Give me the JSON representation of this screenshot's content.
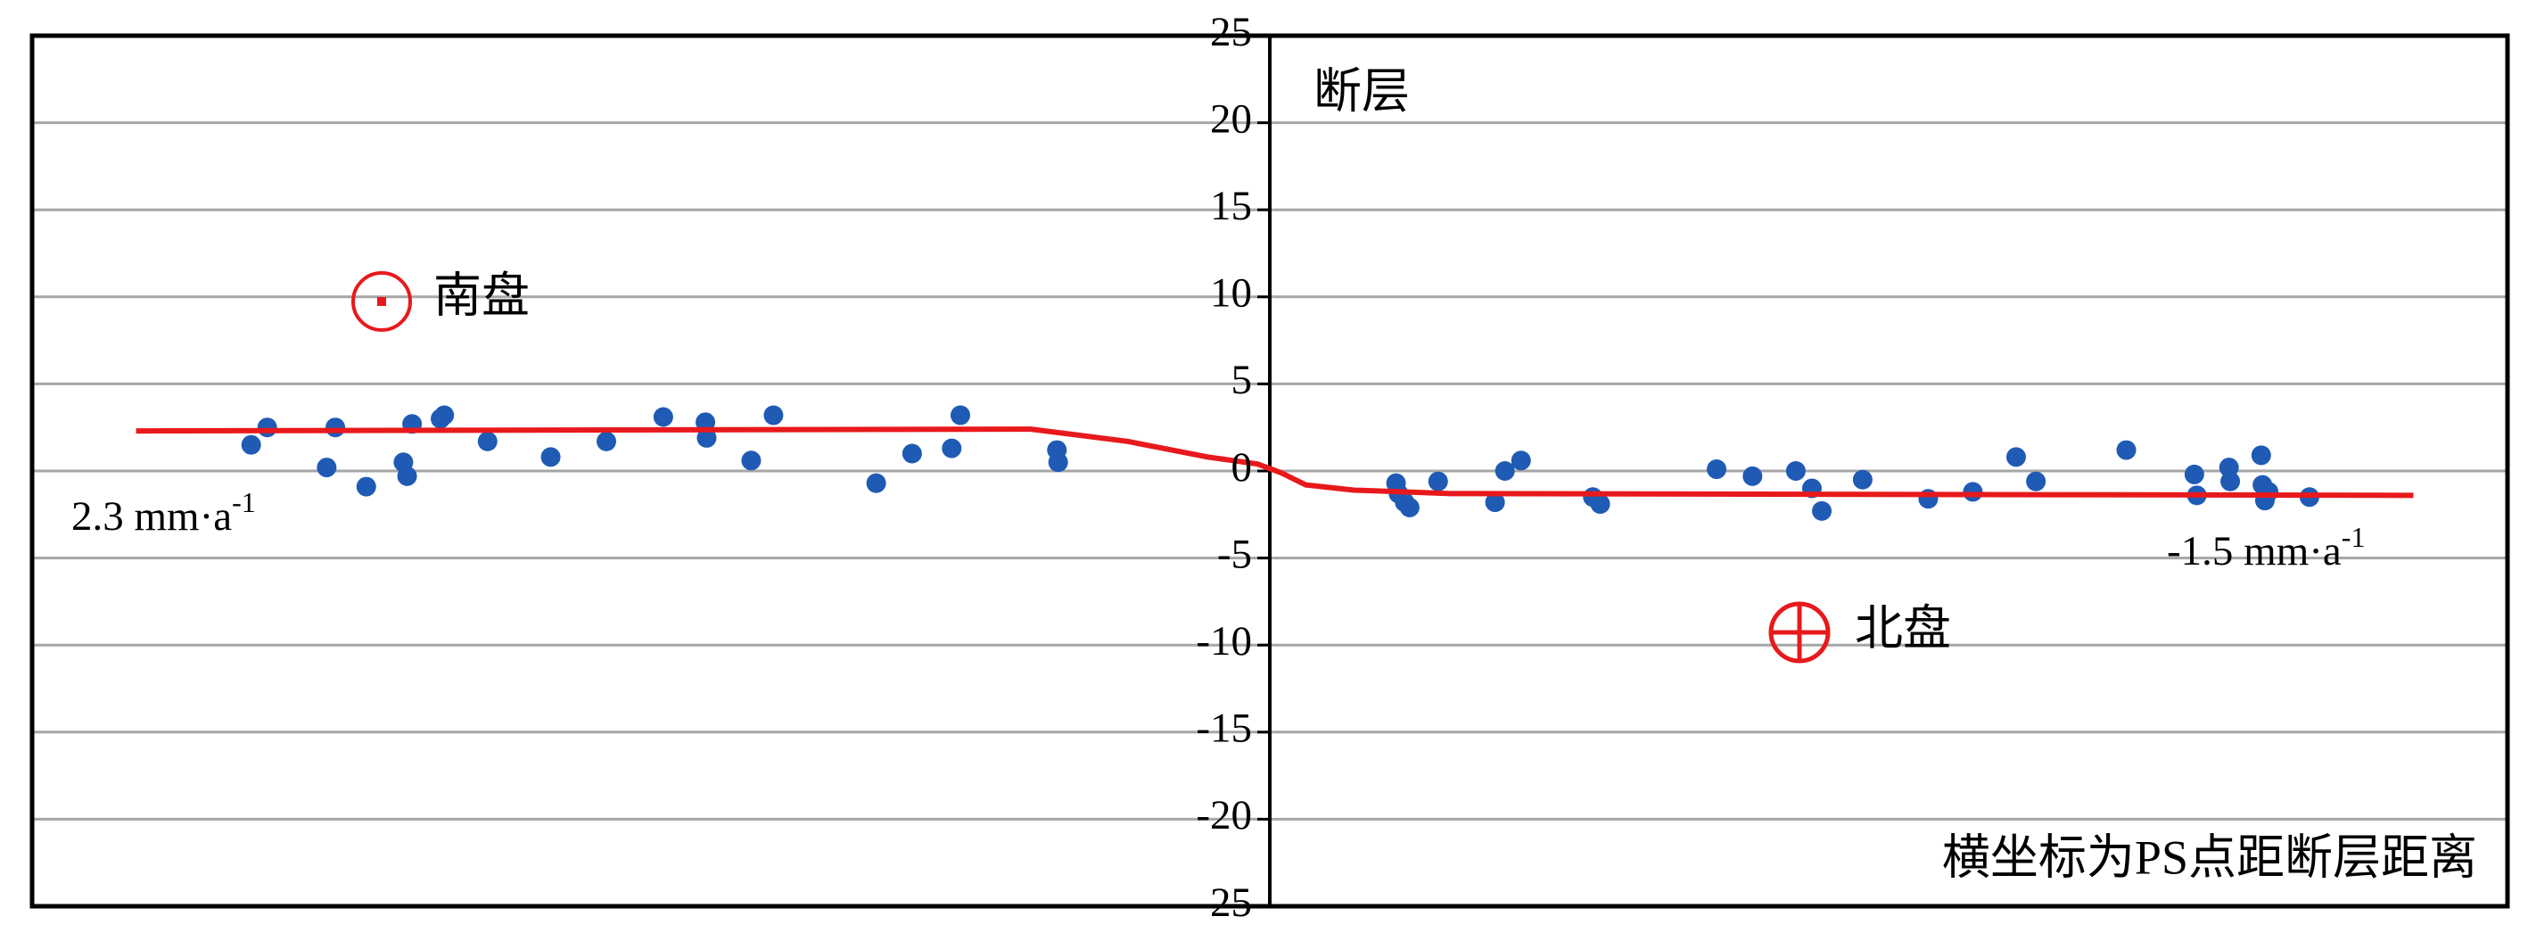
{
  "chart_data": {
    "type": "scatter",
    "ylim": [
      -25,
      25
    ],
    "yticks": [
      -25,
      -20,
      -15,
      -10,
      -5,
      0,
      5,
      10,
      15,
      20,
      25
    ],
    "grid": true,
    "xlim": [
      -100,
      100
    ],
    "series": [
      {
        "color": "#1f5bb5",
        "x": [
          -82.3,
          -81.0,
          -76.2,
          -75.5,
          -73.0,
          -70.0,
          -69.7,
          -69.3,
          -67.0,
          -66.7,
          -63.2,
          -58.1,
          -53.6,
          -49.0,
          -45.6,
          -45.5,
          -41.9,
          -40.1,
          -31.8,
          -28.9,
          -25.7,
          -25.0,
          -17.2,
          -17.1,
          10.2,
          10.4,
          10.9,
          11.3,
          13.6,
          18.2,
          19.0,
          20.3,
          26.1,
          26.7,
          36.1,
          39.0,
          42.5,
          43.8,
          44.6,
          47.9,
          53.2,
          56.8,
          60.3,
          61.9,
          69.2,
          74.7,
          74.9,
          77.5,
          77.6,
          80.1,
          80.2,
          80.4,
          80.7,
          84.0
        ],
        "values": [
          1.5,
          2.5,
          0.2,
          2.5,
          -0.9,
          0.5,
          -0.3,
          2.7,
          3.0,
          3.2,
          1.7,
          0.8,
          1.7,
          3.1,
          2.8,
          1.9,
          0.6,
          3.2,
          -0.7,
          1.0,
          1.3,
          3.2,
          1.2,
          0.5,
          -0.7,
          -1.3,
          -1.8,
          -2.1,
          -0.6,
          -1.8,
          0.0,
          0.6,
          -1.5,
          -1.9,
          0.1,
          -0.3,
          0.0,
          -1.0,
          -2.3,
          -0.5,
          -1.6,
          -1.2,
          0.8,
          -0.6,
          1.2,
          -0.2,
          -1.4,
          0.2,
          -0.6,
          0.9,
          -0.8,
          -1.7,
          -1.2,
          -1.5
        ]
      }
    ],
    "fit_line": {
      "color": "#e8191c",
      "x": [
        -91.6,
        -19.3,
        -11.5,
        -5.0,
        -1.0,
        0.9,
        2.9,
        6.8,
        14.6,
        92.4
      ],
      "values": [
        2.3,
        2.4,
        1.7,
        0.8,
        0.4,
        -0.1,
        -0.8,
        -1.1,
        -1.3,
        -1.4
      ]
    },
    "annotations": {
      "fault": "断层",
      "south": "南盘",
      "north": "北盘",
      "left_rate": {
        "text": "2.3 mm·a",
        "sup": "-1"
      },
      "right_rate": {
        "text": "-1.5 mm·a",
        "sup": "-1"
      },
      "note": "横坐标为PS点距断层距离"
    }
  }
}
